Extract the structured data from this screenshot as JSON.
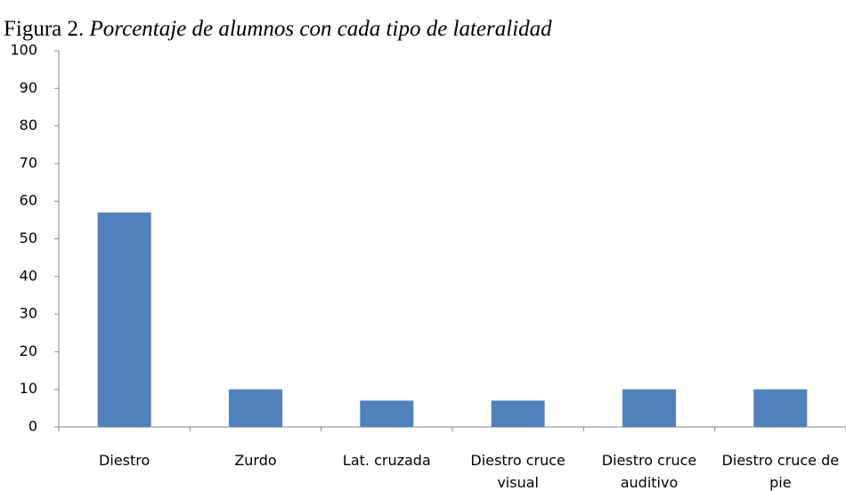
{
  "chart_data": {
    "type": "bar",
    "figure_label": "Figura 2.",
    "title": "Porcentaje de alumnos con cada tipo de lateralidad",
    "categories": [
      "Diestro",
      "Zurdo",
      "Lat. cruzada",
      "Diestro cruce visual",
      "Diestro cruce auditivo",
      "Diestro cruce de pie"
    ],
    "values": [
      57,
      10,
      7,
      7,
      10,
      10
    ],
    "color": "#4f81bd",
    "ylim": [
      0,
      100
    ],
    "yticks": [
      0,
      10,
      20,
      30,
      40,
      50,
      60,
      70,
      80,
      90,
      100
    ],
    "grid": false
  }
}
